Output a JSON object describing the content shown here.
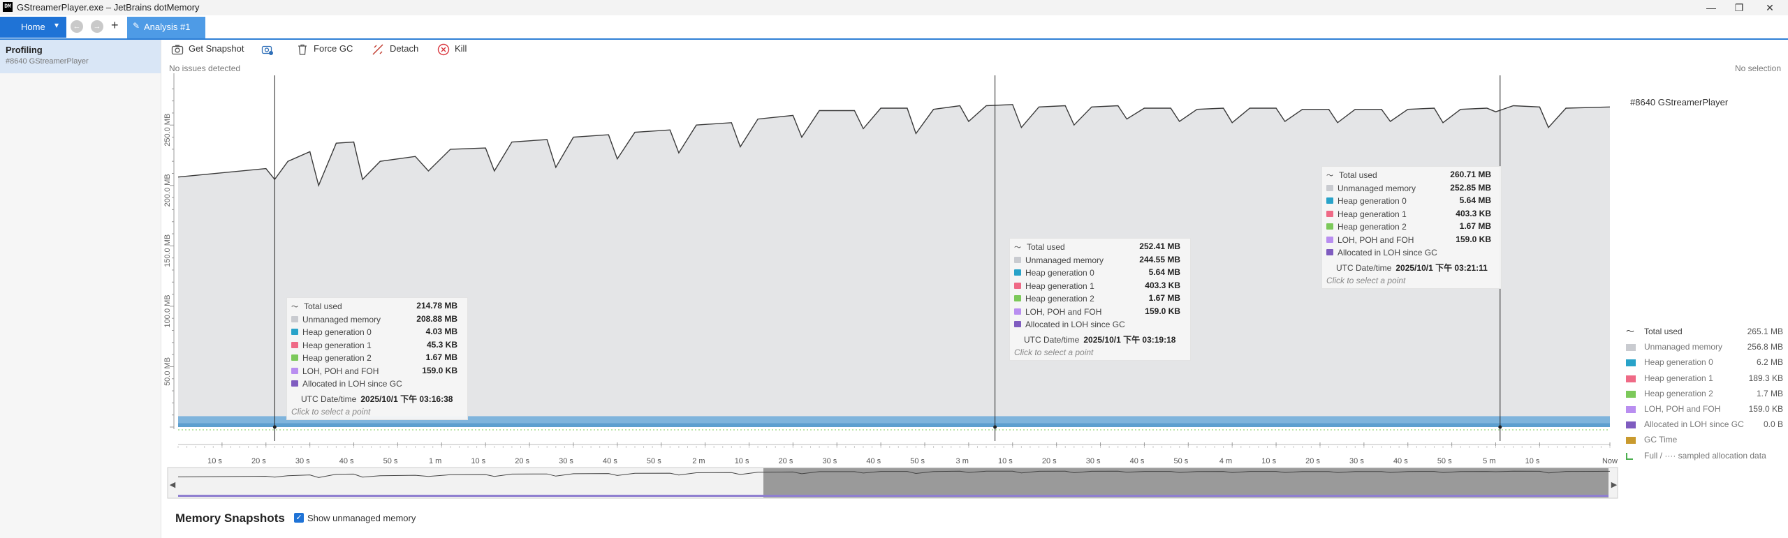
{
  "window": {
    "title": "GStreamerPlayer.exe – JetBrains dotMemory",
    "app_icon": "DM",
    "minimize": "—",
    "maximize": "❐",
    "close": "✕"
  },
  "tabs": {
    "home": "Home",
    "home_arrow": "▾",
    "back": "←",
    "forward": "→",
    "add": "+",
    "analysis": "Analysis #1",
    "analysis_icon": "✎"
  },
  "sidebar": {
    "title": "Profiling",
    "subtitle": "#8640 GStreamerPlayer"
  },
  "toolbar": {
    "get_snapshot": "Get Snapshot",
    "force_gc": "Force GC",
    "detach": "Detach",
    "kill": "Kill"
  },
  "status": {
    "issues": "No issues detected",
    "selection": "No selection"
  },
  "chart": {
    "process_label": "#8640 GStreamerPlayer",
    "y_ticks": [
      "250.0 MB",
      "200.0 MB",
      "150.0 MB",
      "100.0 MB",
      "50.0 MB"
    ],
    "x_ticks": [
      "10 s",
      "20 s",
      "30 s",
      "40 s",
      "50 s",
      "1 m",
      "10 s",
      "20 s",
      "30 s",
      "40 s",
      "50 s",
      "2 m",
      "10 s",
      "20 s",
      "30 s",
      "40 s",
      "50 s",
      "3 m",
      "10 s",
      "20 s",
      "30 s",
      "40 s",
      "50 s",
      "4 m",
      "10 s",
      "20 s",
      "30 s",
      "40 s",
      "50 s",
      "5 m",
      "10 s",
      "Now"
    ]
  },
  "chart_data": {
    "type": "area",
    "ylabel": "",
    "ylim": [
      0,
      290
    ],
    "y_unit": "MB",
    "x_range_seconds": [
      0,
      326
    ],
    "series": [
      {
        "name": "Total used",
        "color": "#333333"
      },
      {
        "name": "Unmanaged memory",
        "color": "#e6e7ea"
      }
    ],
    "total_used": [
      [
        0,
        207
      ],
      [
        20,
        214
      ],
      [
        22,
        205
      ],
      [
        25,
        220
      ],
      [
        30,
        228
      ],
      [
        32,
        200
      ],
      [
        36,
        235
      ],
      [
        40,
        236
      ],
      [
        42,
        205
      ],
      [
        46,
        220
      ],
      [
        54,
        224
      ],
      [
        57,
        212
      ],
      [
        62,
        230
      ],
      [
        70,
        231
      ],
      [
        72,
        212
      ],
      [
        76,
        236
      ],
      [
        84,
        238
      ],
      [
        86,
        215
      ],
      [
        90,
        240
      ],
      [
        98,
        242
      ],
      [
        100,
        222
      ],
      [
        104,
        244
      ],
      [
        112,
        246
      ],
      [
        114,
        227
      ],
      [
        118,
        250
      ],
      [
        126,
        252
      ],
      [
        128,
        232
      ],
      [
        132,
        255
      ],
      [
        140,
        258
      ],
      [
        142,
        240
      ],
      [
        146,
        262
      ],
      [
        154,
        262
      ],
      [
        156,
        247
      ],
      [
        160,
        264
      ],
      [
        166,
        264
      ],
      [
        168,
        243
      ],
      [
        172,
        263
      ],
      [
        178,
        266
      ],
      [
        180,
        253
      ],
      [
        184,
        266
      ],
      [
        190,
        267
      ],
      [
        192,
        248
      ],
      [
        196,
        265
      ],
      [
        202,
        266
      ],
      [
        204,
        250
      ],
      [
        208,
        265
      ],
      [
        214,
        266
      ],
      [
        216,
        255
      ],
      [
        220,
        264
      ],
      [
        226,
        264
      ],
      [
        228,
        253
      ],
      [
        232,
        263
      ],
      [
        238,
        264
      ],
      [
        240,
        252
      ],
      [
        244,
        264
      ],
      [
        250,
        264
      ],
      [
        252,
        253
      ],
      [
        256,
        263
      ],
      [
        262,
        263
      ],
      [
        264,
        252
      ],
      [
        268,
        263
      ],
      [
        274,
        263
      ],
      [
        276,
        253
      ],
      [
        280,
        263
      ],
      [
        286,
        264
      ],
      [
        288,
        252
      ],
      [
        292,
        263
      ],
      [
        298,
        264
      ],
      [
        300,
        261
      ],
      [
        304,
        266
      ],
      [
        310,
        265
      ],
      [
        312,
        248
      ],
      [
        316,
        264
      ],
      [
        326,
        265
      ]
    ],
    "managed_band_mb": 9,
    "markers_seconds": [
      22,
      186,
      301
    ],
    "tooltips": [
      {
        "total_used": "214.78 MB",
        "unmanaged": "208.88 MB",
        "gen0": "4.03 MB",
        "gen1": "45.3 KB",
        "gen2": "1.67 MB",
        "loh": "159.0 KB",
        "loh_alloc": "",
        "utc": "2025/10/1 下午 03:16:38"
      },
      {
        "total_used": "252.41 MB",
        "unmanaged": "244.55 MB",
        "gen0": "5.64 MB",
        "gen1": "403.3 KB",
        "gen2": "1.67 MB",
        "loh": "159.0 KB",
        "loh_alloc": "",
        "utc": "2025/10/1 下午 03:19:18"
      },
      {
        "total_used": "260.71 MB",
        "unmanaged": "252.85 MB",
        "gen0": "5.64 MB",
        "gen1": "403.3 KB",
        "gen2": "1.67 MB",
        "loh": "159.0 KB",
        "loh_alloc": "",
        "utc": "2025/10/1 下午 03:21:11"
      }
    ]
  },
  "tooltip_labels": {
    "total_used": "Total used",
    "unmanaged": "Unmanaged memory",
    "gen0": "Heap generation 0",
    "gen1": "Heap generation 1",
    "gen2": "Heap generation 2",
    "loh": "LOH, POH and FOH",
    "loh_alloc": "Allocated in LOH since GC",
    "utc": "UTC Date/time",
    "hint": "Click to select a point"
  },
  "colors": {
    "gen0": "#29a3c9",
    "gen1": "#ef6a86",
    "gen2": "#7cc95a",
    "loh": "#b98ef0",
    "loh_alloc": "#7f5cc0",
    "unmanaged": "#c9cbd0",
    "gc_time": "#c99a2e",
    "accent": "#1f73d6"
  },
  "legend": [
    {
      "key": "total_used",
      "name": "Total used",
      "value": "265.1 MB"
    },
    {
      "key": "unmanaged",
      "name": "Unmanaged memory",
      "value": "256.8 MB"
    },
    {
      "key": "gen0",
      "name": "Heap generation 0",
      "value": "6.2 MB"
    },
    {
      "key": "gen1",
      "name": "Heap generation 1",
      "value": "189.3 KB"
    },
    {
      "key": "gen2",
      "name": "Heap generation 2",
      "value": "1.7 MB"
    },
    {
      "key": "loh",
      "name": "LOH, POH and FOH",
      "value": "159.0 KB"
    },
    {
      "key": "loh_alloc",
      "name": "Allocated in LOH since GC",
      "value": "0.0 B"
    },
    {
      "key": "gc_time",
      "name": "GC Time",
      "value": ""
    },
    {
      "key": "full",
      "name": "Full / ···· sampled allocation data",
      "value": ""
    }
  ],
  "overview": {
    "left_arrow": "◀",
    "right_arrow": "▶"
  },
  "snapshots": {
    "title": "Memory Snapshots",
    "show_unmanaged": "Show unmanaged memory",
    "checked": true
  }
}
